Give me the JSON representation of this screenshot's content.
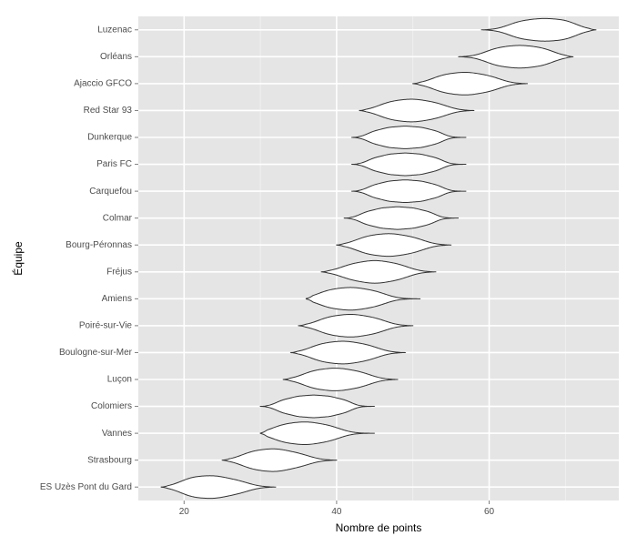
{
  "chart_data": {
    "type": "violin",
    "title": "",
    "xlabel": "Nombre de points",
    "ylabel": "Équipe",
    "xlim": [
      14,
      77
    ],
    "xticks": [
      20,
      40,
      60
    ],
    "grid": true,
    "background": "#e5e5e5",
    "categories": [
      "Luzenac",
      "Orléans",
      "Ajaccio GFCO",
      "Red Star 93",
      "Dunkerque",
      "Paris FC",
      "Carquefou",
      "Colmar",
      "Bourg-Péronnas",
      "Fréjus",
      "Amiens",
      "Poiré-sur-Vie",
      "Boulogne-sur-Mer",
      "Luçon",
      "Colomiers",
      "Vannes",
      "Strasbourg",
      "ES Uzès Pont du Gard"
    ],
    "series": [
      {
        "team": "Luzenac",
        "min": 59,
        "max": 74,
        "peaks": [
          64,
          67,
          70
        ],
        "peak_width": [
          0.8,
          1.0,
          0.9
        ]
      },
      {
        "team": "Orléans",
        "min": 56,
        "max": 71,
        "peaks": [
          61,
          64,
          67
        ],
        "peak_width": [
          0.8,
          1.0,
          0.8
        ]
      },
      {
        "team": "Ajaccio GFCO",
        "min": 50,
        "max": 65,
        "peaks": [
          54,
          57,
          60
        ],
        "peak_width": [
          0.8,
          1.0,
          0.7
        ]
      },
      {
        "team": "Red Star 93",
        "min": 43,
        "max": 58,
        "peaks": [
          47,
          50,
          53
        ],
        "peak_width": [
          0.8,
          1.0,
          0.7
        ]
      },
      {
        "team": "Dunkerque",
        "min": 42,
        "max": 57,
        "peaks": [
          45,
          47,
          49,
          51,
          53
        ],
        "peak_width": [
          0.6,
          0.9,
          1.0,
          0.9,
          0.6
        ]
      },
      {
        "team": "Paris FC",
        "min": 42,
        "max": 57,
        "peaks": [
          45,
          47,
          49,
          51,
          53
        ],
        "peak_width": [
          0.6,
          0.9,
          1.0,
          0.9,
          0.6
        ]
      },
      {
        "team": "Carquefou",
        "min": 42,
        "max": 57,
        "peaks": [
          45,
          47,
          49,
          51,
          53
        ],
        "peak_width": [
          0.6,
          0.9,
          1.0,
          0.9,
          0.6
        ]
      },
      {
        "team": "Colmar",
        "min": 41,
        "max": 56,
        "peaks": [
          44,
          46,
          48,
          50,
          52
        ],
        "peak_width": [
          0.6,
          0.9,
          1.0,
          0.9,
          0.6
        ]
      },
      {
        "team": "Bourg-Péronnas",
        "min": 40,
        "max": 55,
        "peaks": [
          44,
          47,
          50
        ],
        "peak_width": [
          0.8,
          1.0,
          0.7
        ]
      },
      {
        "team": "Fréjus",
        "min": 38,
        "max": 53,
        "peaks": [
          42,
          45,
          48
        ],
        "peak_width": [
          0.7,
          1.0,
          0.7
        ]
      },
      {
        "team": "Amiens",
        "min": 36,
        "max": 51,
        "peaks": [
          39,
          42,
          45
        ],
        "peak_width": [
          0.8,
          1.0,
          0.7
        ]
      },
      {
        "team": "Poiré-sur-Vie",
        "min": 35,
        "max": 50,
        "peaks": [
          39,
          42,
          45
        ],
        "peak_width": [
          0.8,
          1.0,
          0.7
        ]
      },
      {
        "team": "Boulogne-sur-Mer",
        "min": 34,
        "max": 49,
        "peaks": [
          38,
          41,
          44
        ],
        "peak_width": [
          0.8,
          1.0,
          0.7
        ]
      },
      {
        "team": "Luçon",
        "min": 33,
        "max": 48,
        "peaks": [
          37,
          40,
          43
        ],
        "peak_width": [
          0.8,
          1.0,
          0.7
        ]
      },
      {
        "team": "Colomiers",
        "min": 30,
        "max": 45,
        "peaks": [
          33,
          35,
          37,
          39,
          41
        ],
        "peak_width": [
          0.6,
          0.9,
          1.0,
          0.9,
          0.6
        ]
      },
      {
        "team": "Vannes",
        "min": 30,
        "max": 45,
        "peaks": [
          33,
          36,
          39
        ],
        "peak_width": [
          0.8,
          1.0,
          0.7
        ]
      },
      {
        "team": "Strasbourg",
        "min": 25,
        "max": 40,
        "peaks": [
          29,
          32,
          35
        ],
        "peak_width": [
          0.8,
          1.0,
          0.6
        ]
      },
      {
        "team": "ES Uzès Pont du Gard",
        "min": 17,
        "max": 32,
        "peaks": [
          21,
          24,
          27
        ],
        "peak_width": [
          0.9,
          1.0,
          0.6
        ]
      }
    ]
  }
}
